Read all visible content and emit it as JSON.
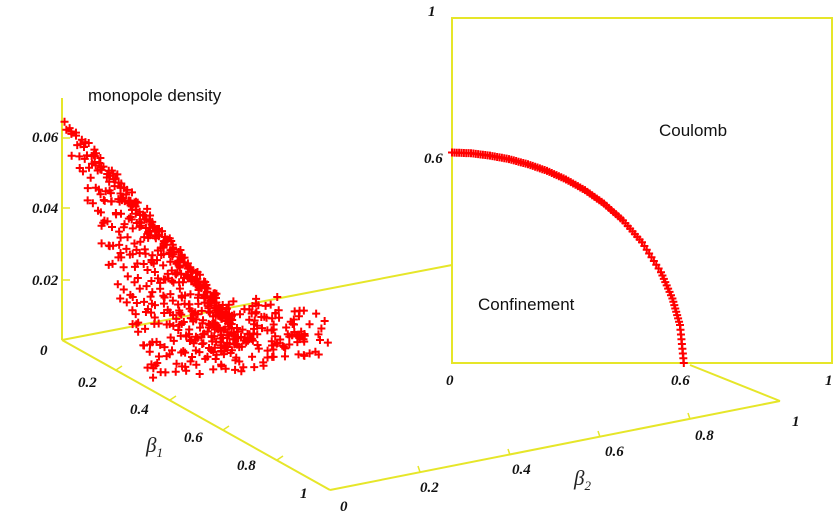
{
  "colors": {
    "axes": "#e6e629",
    "markers": "#ff0000",
    "text": "#111111"
  },
  "labels": {
    "density_title": "monopole density",
    "coulomb": "Coulomb",
    "confinement": "Confinement",
    "beta1_symbol": "β",
    "beta1_sub": "1",
    "beta2_symbol": "β",
    "beta2_sub": "2"
  },
  "ticks": {
    "z": [
      "0",
      "0.02",
      "0.04",
      "0.06"
    ],
    "beta1": [
      "0.2",
      "0.4",
      "0.6",
      "0.8",
      "1"
    ],
    "beta2": [
      "0",
      "0.2",
      "0.4",
      "0.6",
      "0.8",
      "1"
    ],
    "phase_y": [
      "0.6",
      "1"
    ],
    "phase_x": [
      "0",
      "0.6",
      "1"
    ]
  },
  "chart_data": [
    {
      "type": "scatter",
      "subtype": "3d-scatter",
      "title": "monopole density",
      "xlabel": "β1",
      "ylabel": "β2",
      "zlabel": "",
      "xlim": [
        0,
        1
      ],
      "ylim": [
        0,
        1
      ],
      "zlim": [
        0,
        0.07
      ],
      "marker": "+",
      "color": "#ff0000",
      "note": "dense point cloud; values shown approximate the ridge surface",
      "points": [
        [
          0.05,
          0.05,
          0.055
        ],
        [
          0.1,
          0.05,
          0.05
        ],
        [
          0.2,
          0.05,
          0.042
        ],
        [
          0.3,
          0.05,
          0.034
        ],
        [
          0.4,
          0.05,
          0.026
        ],
        [
          0.5,
          0.05,
          0.018
        ],
        [
          0.6,
          0.05,
          0.008
        ],
        [
          0.7,
          0.05,
          0.002
        ],
        [
          0.05,
          0.2,
          0.052
        ],
        [
          0.2,
          0.2,
          0.04
        ],
        [
          0.4,
          0.2,
          0.024
        ],
        [
          0.55,
          0.2,
          0.012
        ],
        [
          0.05,
          0.4,
          0.046
        ],
        [
          0.2,
          0.4,
          0.034
        ],
        [
          0.4,
          0.4,
          0.018
        ],
        [
          0.5,
          0.4,
          0.008
        ],
        [
          0.05,
          0.55,
          0.04
        ],
        [
          0.2,
          0.55,
          0.028
        ],
        [
          0.3,
          0.5,
          0.016
        ],
        [
          0.4,
          0.45,
          0.006
        ]
      ]
    },
    {
      "type": "scatter",
      "subtype": "phase-boundary",
      "title": "",
      "xlabel": "",
      "ylabel": "",
      "xlim": [
        0,
        1
      ],
      "ylim": [
        0,
        1
      ],
      "regions": [
        "Coulomb",
        "Confinement"
      ],
      "marker": "+",
      "color": "#ff0000",
      "x": [
        0.0,
        0.05,
        0.1,
        0.15,
        0.2,
        0.25,
        0.3,
        0.35,
        0.4,
        0.45,
        0.5,
        0.55,
        0.58,
        0.6,
        0.61
      ],
      "y": [
        0.61,
        0.608,
        0.601,
        0.591,
        0.576,
        0.557,
        0.532,
        0.501,
        0.462,
        0.413,
        0.35,
        0.263,
        0.187,
        0.11,
        0.0
      ]
    }
  ]
}
